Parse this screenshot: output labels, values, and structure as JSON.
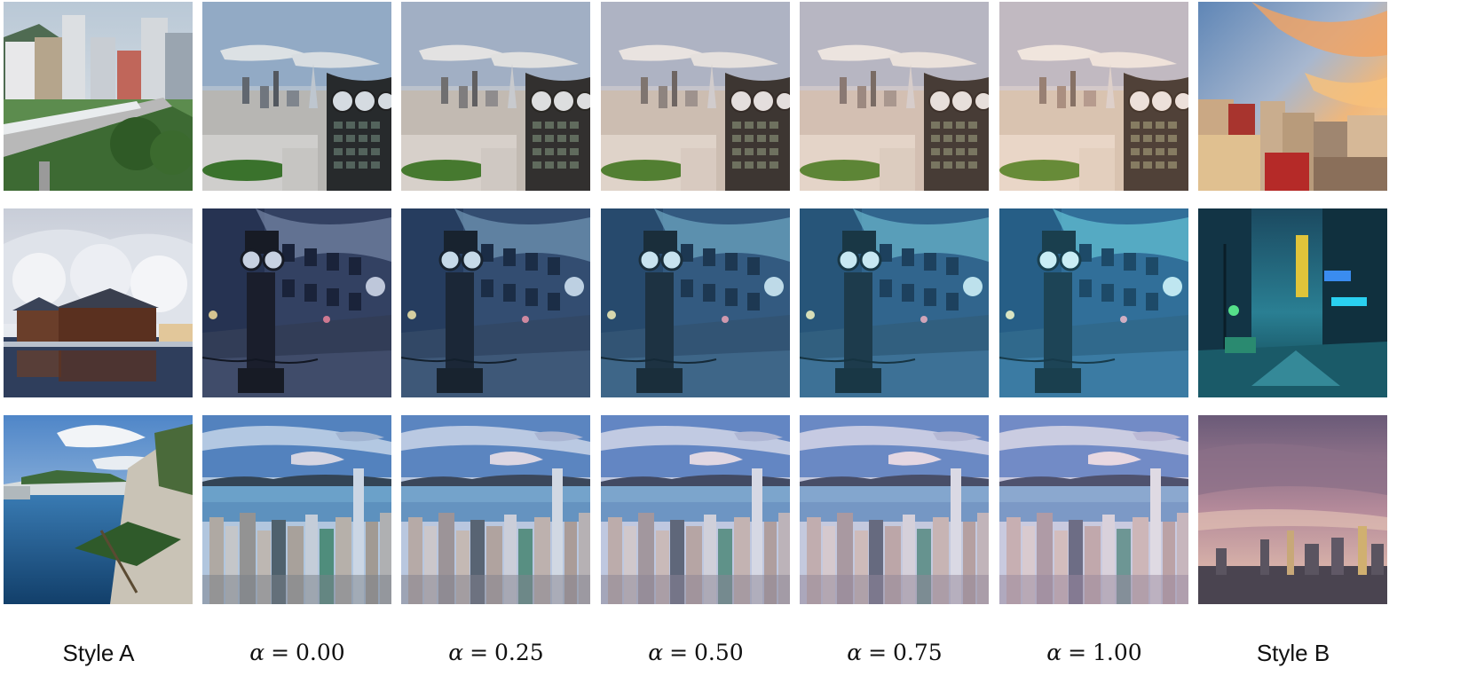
{
  "figure": {
    "columns": [
      {
        "kind": "style",
        "label": "Style A"
      },
      {
        "kind": "alpha",
        "symbol": "α",
        "equals": "=",
        "value": "0.00"
      },
      {
        "kind": "alpha",
        "symbol": "α",
        "equals": "=",
        "value": "0.25"
      },
      {
        "kind": "alpha",
        "symbol": "α",
        "equals": "=",
        "value": "0.50"
      },
      {
        "kind": "alpha",
        "symbol": "α",
        "equals": "=",
        "value": "0.75"
      },
      {
        "kind": "alpha",
        "symbol": "α",
        "equals": "=",
        "value": "1.00"
      },
      {
        "kind": "style",
        "label": "Style B"
      }
    ],
    "rows": [
      {
        "name": "city-skyline-clock-tower",
        "style_a": "train-and-highrises-photo",
        "style_b": "sunset-city-photo",
        "tint_from": "#9fb4c8",
        "tint_to": "#e0a27a"
      },
      {
        "name": "steam-clock-night-street",
        "style_a": "frosty-boathouse-photo",
        "style_b": "neon-rain-street-photo",
        "tint_from": "#5a6f96",
        "tint_to": "#3fd1e0"
      },
      {
        "name": "harbour-city-aerial",
        "style_a": "coastal-cliff-pine-photo",
        "style_b": "dusky-purple-skyline-photo",
        "tint_from": "#6aa0d8",
        "tint_to": "#a27ea8"
      }
    ],
    "tint_strengths": [
      0.0,
      0.25,
      0.5,
      0.75,
      1.0
    ]
  }
}
